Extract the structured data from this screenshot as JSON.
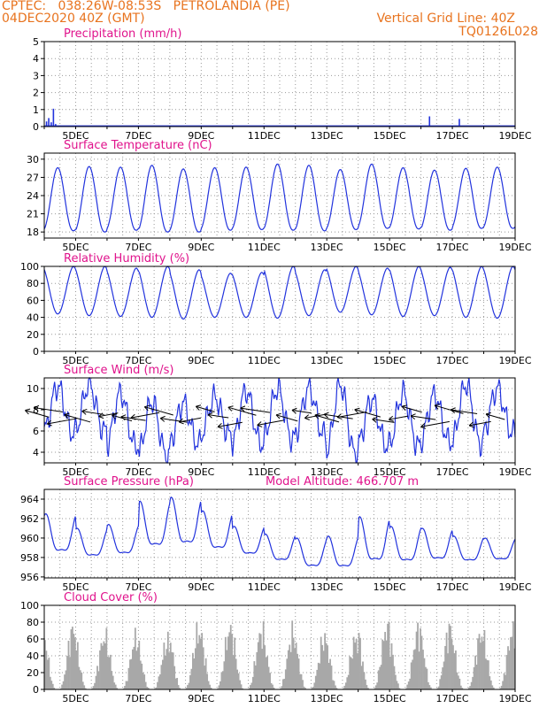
{
  "header": {
    "line1_left": "CPTEC:   038:26W-08:53S   PETROLANDIA (PE)",
    "line2_left": "04DEC2020 40Z (GMT)",
    "line1_right": "Vertical Grid Line: 40Z",
    "line2_right": "TQ0126L028"
  },
  "colors": {
    "header_text": "#e8731e",
    "panel_title": "#e0138c",
    "series_line": "#2233dd",
    "cloud_fill": "#a8a8a8",
    "wind_arrow": "#000000",
    "grid": "#999999"
  },
  "chart_data": [
    {
      "type": "bar",
      "title": "Precipitation (mm/h)",
      "ylim": [
        0,
        5
      ],
      "yticks": [
        0,
        1,
        2,
        3,
        4,
        5
      ],
      "xlabels": [
        "5DEC",
        "7DEC",
        "9DEC",
        "11DEC",
        "13DEC",
        "15DEC",
        "17DEC",
        "19DEC"
      ],
      "x_day_start": 4.0,
      "bars": [
        {
          "day": 4.05,
          "value": 0.3
        },
        {
          "day": 4.12,
          "value": 0.5
        },
        {
          "day": 4.2,
          "value": 0.25
        },
        {
          "day": 4.27,
          "value": 1.05
        },
        {
          "day": 4.34,
          "value": 0.15
        },
        {
          "day": 16.25,
          "value": 0.6
        },
        {
          "day": 17.2,
          "value": 0.45
        }
      ]
    },
    {
      "type": "line",
      "title": "Surface Temperature (nC)",
      "ylim": [
        17,
        31
      ],
      "yticks": [
        18,
        21,
        24,
        27,
        30
      ],
      "xlabels": [
        "5DEC",
        "7DEC",
        "9DEC",
        "11DEC",
        "13DEC",
        "15DEC",
        "17DEC",
        "19DEC"
      ],
      "x_day_start": 4.0,
      "daily_min": [
        18.2,
        18.0,
        18.3,
        18.0,
        18.0,
        18.3,
        18.4,
        18.3,
        18.2,
        18.4,
        18.6,
        18.5,
        18.3,
        18.6,
        18.6
      ],
      "daily_max": [
        28.6,
        28.8,
        28.7,
        29.0,
        28.4,
        28.6,
        28.7,
        29.2,
        29.0,
        28.3,
        29.2,
        28.6,
        28.2,
        28.5,
        28.7
      ]
    },
    {
      "type": "line",
      "title": "Relative Humidity (%)",
      "ylim": [
        0,
        100
      ],
      "yticks": [
        0,
        20,
        40,
        60,
        80,
        100
      ],
      "xlabels": [
        "5DEC",
        "7DEC",
        "9DEC",
        "11DEC",
        "13DEC",
        "15DEC",
        "17DEC",
        "19DEC"
      ],
      "x_day_start": 4.0,
      "daily_min": [
        44,
        42,
        41,
        40,
        38,
        40,
        40,
        39,
        42,
        46,
        43,
        41,
        42,
        40,
        39
      ],
      "daily_max": [
        100,
        100,
        98,
        100,
        96,
        92,
        93,
        100,
        96,
        100,
        98,
        100,
        99,
        100,
        100
      ]
    },
    {
      "type": "line",
      "title": "Surface Wind (m/s)",
      "ylim": [
        3,
        11
      ],
      "yticks": [
        4,
        6,
        8,
        10
      ],
      "xlabels": [
        "5DEC",
        "7DEC",
        "9DEC",
        "11DEC",
        "13DEC",
        "15DEC",
        "17DEC",
        "19DEC"
      ],
      "x_day_start": 4.0,
      "daily_min": [
        5.8,
        6.0,
        4.6,
        3.6,
        4.8,
        5.6,
        4.8,
        5.2,
        5.6,
        3.8,
        4.6,
        4.6,
        5.0,
        4.8,
        5.8
      ],
      "daily_max": [
        10.2,
        10.4,
        9.6,
        8.8,
        8.6,
        9.2,
        9.8,
        10.0,
        10.0,
        10.4,
        9.0,
        9.6,
        9.4,
        10.4,
        10.0
      ]
    },
    {
      "type": "line",
      "title": "Surface Pressure (hPa)",
      "annotation": "Model Altitude: 466.707  m",
      "ylim": [
        955.9,
        965
      ],
      "yticks": [
        956,
        958,
        960,
        962,
        964
      ],
      "xlabels": [
        "5DEC",
        "7DEC",
        "9DEC",
        "11DEC",
        "13DEC",
        "15DEC",
        "17DEC",
        "19DEC"
      ],
      "x_day_start": 4.0,
      "daily_hi": [
        962.5,
        961.0,
        961.4,
        963.8,
        964.2,
        962.8,
        961.2,
        960.4,
        960.0,
        960.2,
        962.2,
        961.2,
        961.0,
        960.2,
        960.0
      ],
      "daily_lo": [
        957.6,
        957.4,
        957.6,
        958.0,
        958.2,
        957.9,
        957.6,
        957.0,
        956.3,
        956.2,
        956.5,
        956.7,
        957.0,
        957.0,
        957.2
      ]
    },
    {
      "type": "area",
      "title": "Cloud Cover (%)",
      "ylim": [
        0,
        100
      ],
      "yticks": [
        0,
        20,
        40,
        60,
        80,
        100
      ],
      "xlabels": [
        "5DEC",
        "7DEC",
        "9DEC",
        "11DEC",
        "13DEC",
        "15DEC",
        "17DEC",
        "19DEC"
      ],
      "x_day_start": 4.0,
      "daily_peak": [
        92,
        80,
        78,
        72,
        88,
        92,
        88,
        85,
        78,
        76,
        95,
        90,
        92,
        85,
        88
      ]
    }
  ]
}
